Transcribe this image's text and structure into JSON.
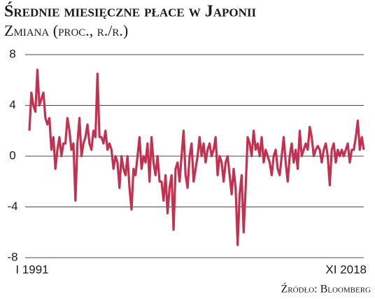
{
  "chart_data": {
    "type": "line",
    "title": "Średnie miesięczne płace w Japonii",
    "subtitle": "Zmiana (proc., r./r.)",
    "source": "Źródło: Bloomberg",
    "color": "#c4304f",
    "grid": true,
    "ylim": [
      -8,
      8
    ],
    "yticks": [
      8,
      4,
      0,
      -4,
      -8
    ],
    "categories": [
      "I 1991",
      null,
      null,
      null,
      null,
      null,
      null,
      null,
      null,
      null,
      null,
      null,
      null,
      null,
      null,
      null,
      null,
      null,
      null,
      null,
      null,
      null,
      null,
      null,
      null,
      null,
      null,
      null,
      null,
      null,
      null,
      null,
      null,
      null,
      null,
      null,
      null,
      null,
      null,
      null,
      null,
      null,
      null,
      null,
      null,
      null,
      null,
      null,
      null,
      null,
      null,
      null,
      null,
      null,
      null,
      null,
      null,
      null,
      null,
      null,
      null,
      null,
      null,
      null,
      null,
      null,
      null,
      null,
      null,
      null,
      null,
      null,
      null,
      null,
      null,
      null,
      null,
      null,
      null,
      null,
      null,
      null,
      null,
      null,
      null,
      null,
      null,
      null,
      null,
      null,
      null,
      null,
      null,
      null,
      null,
      null,
      null,
      null,
      null,
      null,
      null,
      null,
      null,
      null,
      null,
      null,
      null,
      null,
      null,
      null,
      null,
      null,
      null,
      null,
      null,
      null,
      null,
      null,
      null,
      null,
      null,
      null,
      null,
      null,
      null,
      null,
      null,
      null,
      null,
      null,
      null,
      null,
      null,
      null,
      null,
      null,
      null,
      null,
      null,
      null,
      null,
      null,
      null,
      null,
      null,
      null,
      null,
      null,
      null,
      null,
      null,
      null,
      null,
      null,
      null,
      null,
      null,
      null,
      null,
      null,
      null,
      null,
      null,
      null,
      null,
      null,
      null,
      "XI 2018"
    ],
    "values": [
      2,
      5,
      4,
      3.5,
      6.8,
      4,
      4.5,
      5,
      3,
      2.5,
      3,
      0.5,
      1.5,
      -1,
      0.5,
      1.5,
      0,
      1,
      1,
      3,
      2,
      0.5,
      1,
      -3.5,
      1,
      3,
      0,
      1,
      1.5,
      2.5,
      1,
      0.5,
      2,
      1.5,
      6.5,
      1.5,
      1.5,
      1,
      2,
      0.5,
      1,
      0.5,
      -1,
      0,
      -0.5,
      -2.5,
      0,
      -1,
      -1.5,
      0,
      -2.5,
      -4.2,
      -1,
      -1.5,
      0,
      1.5,
      -1,
      0,
      -0.5,
      1,
      -2,
      1.5,
      -0.5,
      -1.5,
      0,
      -2,
      -2,
      -3.5,
      -1.5,
      -4.5,
      -2.5,
      -1.5,
      -5.8,
      -1,
      -0.5,
      -2,
      0,
      2,
      -1.5,
      -2.5,
      0,
      1,
      -2,
      -1,
      0,
      1.5,
      0,
      1,
      -0.5,
      0.5,
      1,
      0,
      0.5,
      1.5,
      -1.5,
      0,
      -0.5,
      -2,
      -0.5,
      0,
      -1.5,
      -3,
      -1,
      -2.5,
      -7,
      -3,
      -1.5,
      -6,
      -2.5,
      1.5,
      1,
      0,
      2,
      0.5,
      1,
      0,
      1.5,
      -0.5,
      0.5,
      0,
      -0.5,
      -1.5,
      0,
      0.5,
      -1,
      -1.5,
      0,
      1.5,
      -0.5,
      -2,
      0,
      1,
      -0.5,
      0.5,
      -1,
      2,
      0,
      0.5,
      1,
      0.5,
      2.3,
      1.5,
      0,
      0.5,
      0.8,
      0.5,
      -0.5,
      0.5,
      1,
      0,
      -2.3,
      0.5,
      1,
      -0.5,
      0.5,
      0,
      0.5,
      0,
      0.5,
      1,
      -0.5,
      0.5,
      0.5,
      1.5,
      2.8,
      0.5,
      1.5,
      0.5
    ]
  }
}
